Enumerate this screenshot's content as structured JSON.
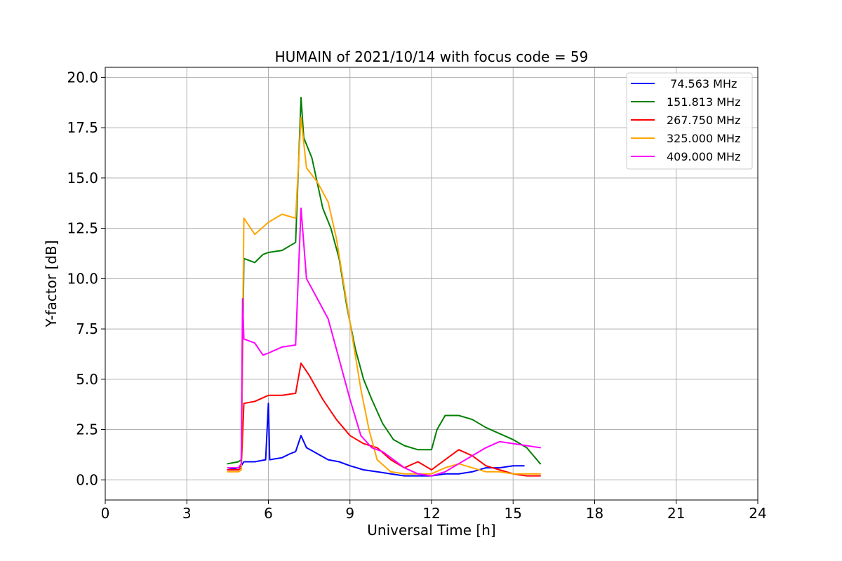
{
  "chart_data": {
    "type": "line",
    "title": "HUMAIN of 2021/10/14 with focus code = 59",
    "xlabel": "Universal Time [h]",
    "ylabel": "Y-factor [dB]",
    "xlim": [
      0,
      24
    ],
    "ylim": [
      -1,
      20.5
    ],
    "xticks": [
      0,
      3,
      6,
      9,
      12,
      15,
      18,
      21,
      24
    ],
    "yticks": [
      0.0,
      2.5,
      5.0,
      7.5,
      10.0,
      12.5,
      15.0,
      17.5,
      20.0
    ],
    "xtick_labels": [
      "0",
      "3",
      "6",
      "9",
      "12",
      "15",
      "18",
      "21",
      "24"
    ],
    "ytick_labels": [
      "0.0",
      "2.5",
      "5.0",
      "7.5",
      "10.0",
      "12.5",
      "15.0",
      "17.5",
      "20.0"
    ],
    "grid": true,
    "legend_position": "top-right",
    "series": [
      {
        "name": " 74.563 MHz",
        "color": "#0000ff",
        "points": [
          [
            4.5,
            0.5
          ],
          [
            4.9,
            0.6
          ],
          [
            5.0,
            0.7
          ],
          [
            5.1,
            0.9
          ],
          [
            5.5,
            0.9
          ],
          [
            5.9,
            1.0
          ],
          [
            6.0,
            3.8
          ],
          [
            6.05,
            1.0
          ],
          [
            6.5,
            1.1
          ],
          [
            6.8,
            1.3
          ],
          [
            7.0,
            1.4
          ],
          [
            7.2,
            2.2
          ],
          [
            7.4,
            1.6
          ],
          [
            7.8,
            1.3
          ],
          [
            8.2,
            1.0
          ],
          [
            8.6,
            0.9
          ],
          [
            9.0,
            0.7
          ],
          [
            9.5,
            0.5
          ],
          [
            10.0,
            0.4
          ],
          [
            10.5,
            0.3
          ],
          [
            11.0,
            0.2
          ],
          [
            11.5,
            0.2
          ],
          [
            12.0,
            0.2
          ],
          [
            12.5,
            0.3
          ],
          [
            13.0,
            0.3
          ],
          [
            13.5,
            0.4
          ],
          [
            14.0,
            0.6
          ],
          [
            14.5,
            0.6
          ],
          [
            15.0,
            0.7
          ],
          [
            15.4,
            0.7
          ]
        ]
      },
      {
        "name": "151.813 MHz",
        "color": "#008000",
        "points": [
          [
            4.5,
            0.8
          ],
          [
            4.9,
            0.9
          ],
          [
            5.0,
            1.0
          ],
          [
            5.1,
            11.0
          ],
          [
            5.5,
            10.8
          ],
          [
            5.8,
            11.2
          ],
          [
            6.0,
            11.3
          ],
          [
            6.5,
            11.4
          ],
          [
            7.0,
            11.8
          ],
          [
            7.2,
            19.0
          ],
          [
            7.3,
            17.0
          ],
          [
            7.6,
            16.0
          ],
          [
            8.0,
            13.5
          ],
          [
            8.3,
            12.5
          ],
          [
            8.6,
            11.0
          ],
          [
            8.9,
            8.5
          ],
          [
            9.2,
            6.5
          ],
          [
            9.5,
            5.0
          ],
          [
            9.8,
            4.0
          ],
          [
            10.2,
            2.8
          ],
          [
            10.6,
            2.0
          ],
          [
            11.0,
            1.7
          ],
          [
            11.5,
            1.5
          ],
          [
            12.0,
            1.5
          ],
          [
            12.2,
            2.5
          ],
          [
            12.5,
            3.2
          ],
          [
            13.0,
            3.2
          ],
          [
            13.5,
            3.0
          ],
          [
            14.0,
            2.6
          ],
          [
            14.5,
            2.3
          ],
          [
            15.0,
            2.0
          ],
          [
            15.5,
            1.6
          ],
          [
            16.0,
            0.8
          ]
        ]
      },
      {
        "name": "267.750 MHz",
        "color": "#ff0000",
        "points": [
          [
            4.5,
            0.5
          ],
          [
            4.9,
            0.5
          ],
          [
            5.0,
            0.6
          ],
          [
            5.1,
            3.8
          ],
          [
            5.5,
            3.9
          ],
          [
            6.0,
            4.2
          ],
          [
            6.5,
            4.2
          ],
          [
            7.0,
            4.3
          ],
          [
            7.2,
            5.8
          ],
          [
            7.5,
            5.2
          ],
          [
            8.0,
            4.0
          ],
          [
            8.5,
            3.0
          ],
          [
            9.0,
            2.2
          ],
          [
            9.5,
            1.8
          ],
          [
            10.0,
            1.6
          ],
          [
            10.5,
            1.0
          ],
          [
            11.0,
            0.6
          ],
          [
            11.5,
            0.9
          ],
          [
            12.0,
            0.5
          ],
          [
            12.5,
            1.0
          ],
          [
            13.0,
            1.5
          ],
          [
            13.5,
            1.2
          ],
          [
            14.0,
            0.7
          ],
          [
            14.5,
            0.5
          ],
          [
            15.0,
            0.3
          ],
          [
            15.5,
            0.2
          ],
          [
            16.0,
            0.2
          ]
        ]
      },
      {
        "name": "325.000 MHz",
        "color": "#ffa500",
        "points": [
          [
            4.5,
            0.4
          ],
          [
            4.9,
            0.4
          ],
          [
            5.0,
            0.5
          ],
          [
            5.1,
            13.0
          ],
          [
            5.5,
            12.2
          ],
          [
            6.0,
            12.8
          ],
          [
            6.5,
            13.2
          ],
          [
            7.0,
            13.0
          ],
          [
            7.2,
            18.0
          ],
          [
            7.4,
            15.5
          ],
          [
            7.8,
            14.8
          ],
          [
            8.2,
            13.8
          ],
          [
            8.5,
            12.0
          ],
          [
            8.8,
            9.5
          ],
          [
            9.1,
            7.0
          ],
          [
            9.4,
            4.5
          ],
          [
            9.7,
            2.5
          ],
          [
            10.0,
            1.0
          ],
          [
            10.5,
            0.4
          ],
          [
            11.0,
            0.3
          ],
          [
            11.5,
            0.3
          ],
          [
            12.0,
            0.3
          ],
          [
            12.5,
            0.6
          ],
          [
            13.0,
            0.8
          ],
          [
            13.5,
            0.6
          ],
          [
            14.0,
            0.4
          ],
          [
            14.5,
            0.4
          ],
          [
            15.0,
            0.3
          ],
          [
            15.5,
            0.3
          ],
          [
            16.0,
            0.3
          ]
        ]
      },
      {
        "name": "409.000 MHz",
        "color": "#ff00ff",
        "points": [
          [
            4.5,
            0.6
          ],
          [
            4.9,
            0.6
          ],
          [
            5.0,
            0.8
          ],
          [
            5.05,
            9.0
          ],
          [
            5.1,
            7.0
          ],
          [
            5.5,
            6.8
          ],
          [
            5.8,
            6.2
          ],
          [
            6.0,
            6.3
          ],
          [
            6.5,
            6.6
          ],
          [
            7.0,
            6.7
          ],
          [
            7.2,
            13.5
          ],
          [
            7.4,
            10.0
          ],
          [
            7.8,
            9.0
          ],
          [
            8.2,
            8.0
          ],
          [
            8.6,
            6.0
          ],
          [
            9.0,
            4.0
          ],
          [
            9.4,
            2.2
          ],
          [
            9.8,
            1.6
          ],
          [
            10.2,
            1.4
          ],
          [
            10.6,
            1.0
          ],
          [
            11.0,
            0.6
          ],
          [
            11.5,
            0.3
          ],
          [
            12.0,
            0.2
          ],
          [
            12.5,
            0.4
          ],
          [
            13.0,
            0.8
          ],
          [
            13.5,
            1.2
          ],
          [
            14.0,
            1.6
          ],
          [
            14.5,
            1.9
          ],
          [
            15.0,
            1.8
          ],
          [
            15.5,
            1.7
          ],
          [
            16.0,
            1.6
          ]
        ]
      }
    ]
  }
}
